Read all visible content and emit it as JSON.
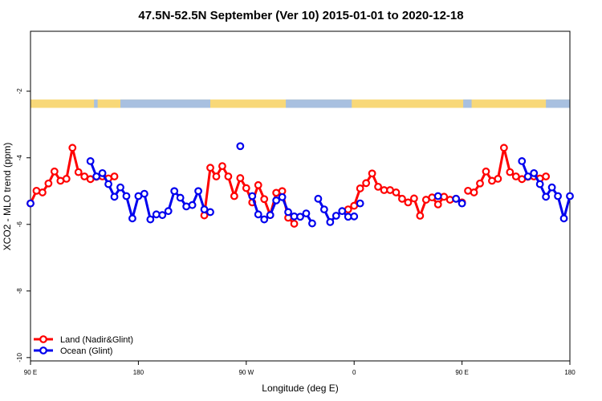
{
  "chart_data": {
    "type": "line",
    "title": "47.5N-52.5N September (Ver 10)   2015-01-01 to 2020-12-18",
    "xlabel": "Longitude (deg E)",
    "ylabel": "XCO2 - MLO trend (ppm)",
    "xlim": [
      90,
      540
    ],
    "ylim": [
      -10.1,
      -0.2
    ],
    "x_ticks": [
      {
        "value": 90,
        "label": "90 E"
      },
      {
        "value": 180,
        "label": "180"
      },
      {
        "value": 270,
        "label": "90 W"
      },
      {
        "value": 360,
        "label": "0"
      },
      {
        "value": 450,
        "label": "90 E"
      },
      {
        "value": 540,
        "label": "180"
      }
    ],
    "y_ticks": [
      {
        "value": -2,
        "label": "-2"
      },
      {
        "value": -4,
        "label": "-4"
      },
      {
        "value": -6,
        "label": "-6"
      },
      {
        "value": -8,
        "label": "-8"
      },
      {
        "value": -10,
        "label": "-10"
      }
    ],
    "grid": false,
    "legend_position": "bottom-left",
    "surface_band": {
      "y_range": [
        -2.5,
        -2.25
      ],
      "land_color": "#F8D878",
      "ocean_color": "#A8C0E0",
      "ocean_ranges": [
        [
          143,
          146
        ],
        [
          165,
          240
        ],
        [
          303,
          358
        ],
        [
          451,
          458
        ],
        [
          520,
          540
        ]
      ]
    },
    "series": [
      {
        "name": "Land (Nadir&Glint)",
        "color": "#ff0000",
        "segments": [
          [
            [
              90,
              -5.37
            ],
            [
              95,
              -4.99
            ],
            [
              100,
              -5.04
            ],
            [
              105,
              -4.77
            ],
            [
              110,
              -4.41
            ],
            [
              115,
              -4.69
            ],
            [
              120,
              -4.63
            ],
            [
              125,
              -3.7
            ],
            [
              130,
              -4.43
            ],
            [
              135,
              -4.56
            ],
            [
              140,
              -4.64
            ],
            [
              145,
              -4.57
            ],
            [
              150,
              -4.56
            ],
            [
              155,
              -4.62
            ],
            [
              160,
              -4.56
            ]
          ],
          [
            [
              235,
              -5.73
            ],
            [
              240,
              -4.3
            ],
            [
              245,
              -4.56
            ],
            [
              250,
              -4.25
            ],
            [
              255,
              -4.56
            ],
            [
              260,
              -5.15
            ],
            [
              265,
              -4.61
            ],
            [
              270,
              -4.91
            ],
            [
              275,
              -5.34
            ],
            [
              280,
              -4.82
            ],
            [
              285,
              -5.24
            ],
            [
              290,
              -5.72
            ],
            [
              295,
              -5.05
            ],
            [
              300,
              -5.0
            ],
            [
              305,
              -5.8
            ],
            [
              310,
              -5.98
            ]
          ],
          [
            [
              355,
              -5.55
            ],
            [
              360,
              -5.44
            ],
            [
              365,
              -4.92
            ],
            [
              370,
              -4.76
            ],
            [
              375,
              -4.47
            ],
            [
              380,
              -4.87
            ],
            [
              385,
              -4.97
            ],
            [
              390,
              -4.97
            ],
            [
              395,
              -5.04
            ],
            [
              400,
              -5.23
            ],
            [
              405,
              -5.34
            ],
            [
              410,
              -5.22
            ],
            [
              415,
              -5.74
            ],
            [
              420,
              -5.26
            ],
            [
              425,
              -5.19
            ],
            [
              430,
              -5.4
            ],
            [
              435,
              -5.17
            ],
            [
              440,
              -5.26
            ],
            [
              445,
              -5.23
            ],
            [
              450,
              -5.34
            ]
          ],
          [
            [
              455,
              -4.99
            ],
            [
              460,
              -5.04
            ],
            [
              465,
              -4.77
            ],
            [
              470,
              -4.41
            ],
            [
              475,
              -4.69
            ],
            [
              480,
              -4.63
            ],
            [
              485,
              -3.7
            ],
            [
              490,
              -4.43
            ],
            [
              495,
              -4.56
            ],
            [
              500,
              -4.64
            ],
            [
              505,
              -4.57
            ],
            [
              510,
              -4.56
            ],
            [
              515,
              -4.62
            ],
            [
              520,
              -4.56
            ]
          ]
        ]
      },
      {
        "name": "Ocean (Glint)",
        "color": "#0000ee",
        "segments": [
          [
            [
              90,
              -5.37
            ]
          ],
          [
            [
              140,
              -4.1
            ],
            [
              145,
              -4.56
            ],
            [
              150,
              -4.46
            ],
            [
              155,
              -4.79
            ],
            [
              160,
              -5.17
            ],
            [
              165,
              -4.89
            ],
            [
              170,
              -5.15
            ],
            [
              175,
              -5.82
            ],
            [
              180,
              -5.15
            ],
            [
              185,
              -5.08
            ],
            [
              190,
              -5.85
            ],
            [
              195,
              -5.7
            ],
            [
              200,
              -5.72
            ],
            [
              205,
              -5.6
            ],
            [
              210,
              -5.0
            ],
            [
              215,
              -5.2
            ],
            [
              220,
              -5.46
            ],
            [
              225,
              -5.42
            ],
            [
              230,
              -5.0
            ],
            [
              235,
              -5.55
            ],
            [
              240,
              -5.63
            ]
          ],
          [
            [
              265,
              -3.65
            ]
          ],
          [
            [
              275,
              -5.15
            ],
            [
              280,
              -5.7
            ],
            [
              285,
              -5.85
            ],
            [
              290,
              -5.72
            ],
            [
              295,
              -5.28
            ],
            [
              300,
              -5.18
            ],
            [
              305,
              -5.63
            ],
            [
              310,
              -5.76
            ],
            [
              315,
              -5.77
            ],
            [
              320,
              -5.67
            ],
            [
              325,
              -5.97
            ]
          ],
          [
            [
              330,
              -5.23
            ],
            [
              335,
              -5.55
            ],
            [
              340,
              -5.93
            ],
            [
              345,
              -5.74
            ],
            [
              350,
              -5.6
            ],
            [
              355,
              -5.77
            ],
            [
              360,
              -5.76
            ]
          ],
          [
            [
              365,
              -5.37
            ]
          ],
          [
            [
              430,
              -5.15
            ]
          ],
          [
            [
              445,
              -5.23
            ],
            [
              450,
              -5.37
            ]
          ],
          [
            [
              500,
              -4.1
            ],
            [
              505,
              -4.56
            ],
            [
              510,
              -4.46
            ],
            [
              515,
              -4.79
            ],
            [
              520,
              -5.17
            ],
            [
              525,
              -4.89
            ],
            [
              530,
              -5.15
            ],
            [
              535,
              -5.82
            ],
            [
              540,
              -5.15
            ]
          ]
        ]
      }
    ]
  }
}
